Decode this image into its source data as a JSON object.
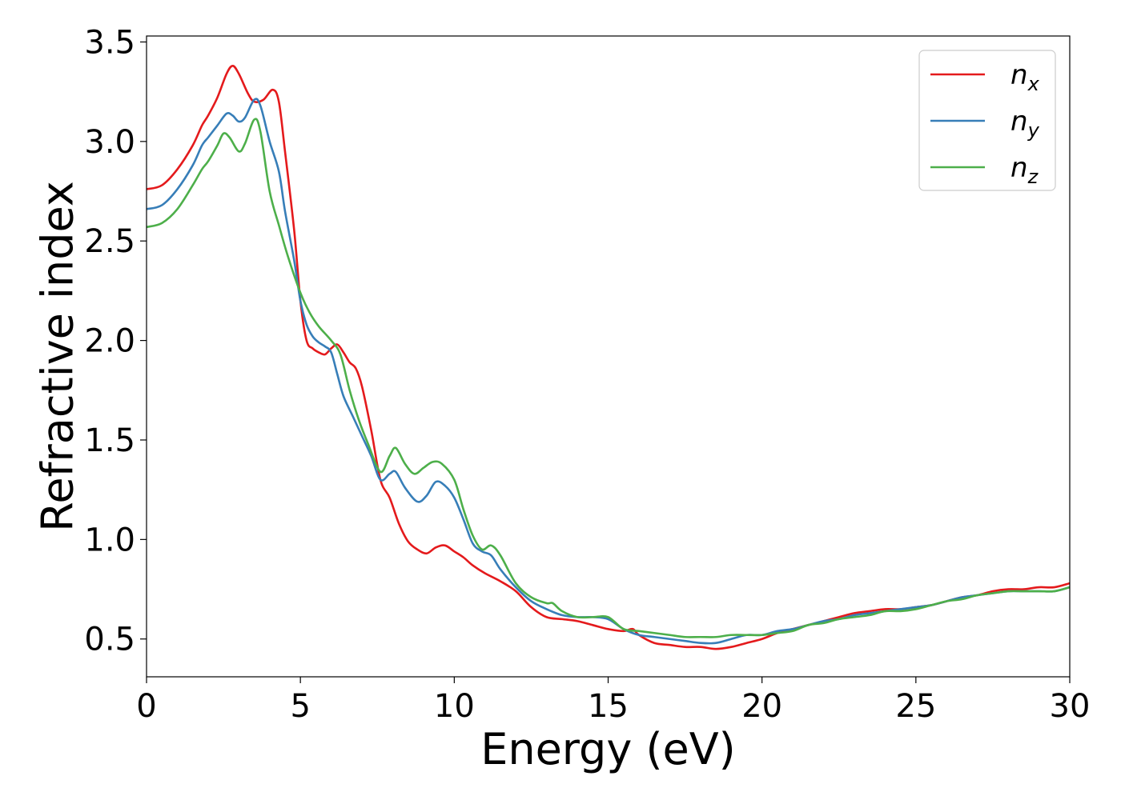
{
  "chart_data": {
    "type": "line",
    "title": "",
    "xlabel": "Energy (eV)",
    "ylabel": "Refractive index",
    "xlim": [
      0,
      30
    ],
    "ylim": [
      0.31,
      3.53
    ],
    "x_ticks": [
      0,
      5,
      10,
      15,
      20,
      25,
      30
    ],
    "x_tick_labels": [
      "0",
      "5",
      "10",
      "15",
      "20",
      "25",
      "30"
    ],
    "y_ticks": [
      0.5,
      1.0,
      1.5,
      2.0,
      2.5,
      3.0,
      3.5
    ],
    "y_tick_labels": [
      "0.5",
      "1.0",
      "1.5",
      "2.0",
      "2.5",
      "3.0",
      "3.5"
    ],
    "grid": false,
    "legend_position": "top-right",
    "series": [
      {
        "name": "n",
        "subscript": "x",
        "color": "#e41a1c",
        "points": [
          [
            0,
            2.76
          ],
          [
            0.5,
            2.78
          ],
          [
            1.0,
            2.86
          ],
          [
            1.5,
            2.98
          ],
          [
            1.8,
            3.08
          ],
          [
            2.0,
            3.13
          ],
          [
            2.3,
            3.22
          ],
          [
            2.6,
            3.34
          ],
          [
            2.8,
            3.38
          ],
          [
            3.0,
            3.34
          ],
          [
            3.3,
            3.24
          ],
          [
            3.5,
            3.2
          ],
          [
            3.8,
            3.21
          ],
          [
            4.1,
            3.26
          ],
          [
            4.3,
            3.2
          ],
          [
            4.5,
            2.95
          ],
          [
            4.8,
            2.55
          ],
          [
            5.0,
            2.2
          ],
          [
            5.2,
            2.0
          ],
          [
            5.4,
            1.96
          ],
          [
            5.6,
            1.94
          ],
          [
            5.8,
            1.93
          ],
          [
            6.0,
            1.96
          ],
          [
            6.2,
            1.98
          ],
          [
            6.4,
            1.94
          ],
          [
            6.6,
            1.89
          ],
          [
            6.8,
            1.86
          ],
          [
            7.0,
            1.77
          ],
          [
            7.3,
            1.55
          ],
          [
            7.6,
            1.3
          ],
          [
            7.9,
            1.21
          ],
          [
            8.2,
            1.08
          ],
          [
            8.5,
            0.99
          ],
          [
            8.8,
            0.95
          ],
          [
            9.1,
            0.93
          ],
          [
            9.4,
            0.96
          ],
          [
            9.7,
            0.97
          ],
          [
            10.0,
            0.94
          ],
          [
            10.3,
            0.91
          ],
          [
            10.6,
            0.87
          ],
          [
            11.0,
            0.83
          ],
          [
            11.5,
            0.79
          ],
          [
            12.0,
            0.74
          ],
          [
            12.5,
            0.66
          ],
          [
            13.0,
            0.61
          ],
          [
            13.5,
            0.6
          ],
          [
            14.0,
            0.59
          ],
          [
            14.5,
            0.57
          ],
          [
            15.0,
            0.55
          ],
          [
            15.5,
            0.54
          ],
          [
            15.8,
            0.55
          ],
          [
            16.0,
            0.52
          ],
          [
            16.5,
            0.48
          ],
          [
            17.0,
            0.47
          ],
          [
            17.5,
            0.46
          ],
          [
            18.0,
            0.46
          ],
          [
            18.5,
            0.45
          ],
          [
            19.0,
            0.46
          ],
          [
            19.5,
            0.48
          ],
          [
            20.0,
            0.5
          ],
          [
            20.5,
            0.53
          ],
          [
            21.0,
            0.55
          ],
          [
            21.5,
            0.57
          ],
          [
            22.0,
            0.59
          ],
          [
            22.5,
            0.61
          ],
          [
            23.0,
            0.63
          ],
          [
            23.5,
            0.64
          ],
          [
            24.0,
            0.65
          ],
          [
            24.5,
            0.65
          ],
          [
            25.0,
            0.66
          ],
          [
            25.5,
            0.67
          ],
          [
            26.0,
            0.69
          ],
          [
            26.5,
            0.71
          ],
          [
            27.0,
            0.72
          ],
          [
            27.5,
            0.74
          ],
          [
            28.0,
            0.75
          ],
          [
            28.5,
            0.75
          ],
          [
            29.0,
            0.76
          ],
          [
            29.5,
            0.76
          ],
          [
            30.0,
            0.78
          ]
        ]
      },
      {
        "name": "n",
        "subscript": "y",
        "color": "#377eb8",
        "points": [
          [
            0,
            2.66
          ],
          [
            0.5,
            2.68
          ],
          [
            1.0,
            2.76
          ],
          [
            1.5,
            2.88
          ],
          [
            1.8,
            2.98
          ],
          [
            2.0,
            3.02
          ],
          [
            2.3,
            3.08
          ],
          [
            2.6,
            3.14
          ],
          [
            2.8,
            3.13
          ],
          [
            3.0,
            3.1
          ],
          [
            3.2,
            3.12
          ],
          [
            3.5,
            3.21
          ],
          [
            3.7,
            3.18
          ],
          [
            4.0,
            3.0
          ],
          [
            4.3,
            2.85
          ],
          [
            4.5,
            2.65
          ],
          [
            4.8,
            2.4
          ],
          [
            5.0,
            2.2
          ],
          [
            5.2,
            2.08
          ],
          [
            5.4,
            2.02
          ],
          [
            5.6,
            1.99
          ],
          [
            5.8,
            1.97
          ],
          [
            6.0,
            1.94
          ],
          [
            6.2,
            1.83
          ],
          [
            6.4,
            1.72
          ],
          [
            6.7,
            1.62
          ],
          [
            7.0,
            1.52
          ],
          [
            7.3,
            1.42
          ],
          [
            7.6,
            1.3
          ],
          [
            7.9,
            1.33
          ],
          [
            8.1,
            1.34
          ],
          [
            8.4,
            1.26
          ],
          [
            8.8,
            1.19
          ],
          [
            9.1,
            1.22
          ],
          [
            9.4,
            1.29
          ],
          [
            9.7,
            1.27
          ],
          [
            10.0,
            1.21
          ],
          [
            10.3,
            1.1
          ],
          [
            10.6,
            0.98
          ],
          [
            10.9,
            0.94
          ],
          [
            11.2,
            0.92
          ],
          [
            11.5,
            0.85
          ],
          [
            12.0,
            0.76
          ],
          [
            12.5,
            0.69
          ],
          [
            13.0,
            0.65
          ],
          [
            13.5,
            0.62
          ],
          [
            14.0,
            0.61
          ],
          [
            14.5,
            0.61
          ],
          [
            15.0,
            0.6
          ],
          [
            15.5,
            0.55
          ],
          [
            16.0,
            0.52
          ],
          [
            16.5,
            0.51
          ],
          [
            17.0,
            0.5
          ],
          [
            17.5,
            0.49
          ],
          [
            18.0,
            0.48
          ],
          [
            18.5,
            0.48
          ],
          [
            19.0,
            0.5
          ],
          [
            19.5,
            0.52
          ],
          [
            20.0,
            0.52
          ],
          [
            20.5,
            0.54
          ],
          [
            21.0,
            0.55
          ],
          [
            21.5,
            0.57
          ],
          [
            22.0,
            0.59
          ],
          [
            22.5,
            0.6
          ],
          [
            23.0,
            0.62
          ],
          [
            23.5,
            0.63
          ],
          [
            24.0,
            0.64
          ],
          [
            24.5,
            0.65
          ],
          [
            25.0,
            0.66
          ],
          [
            25.5,
            0.67
          ],
          [
            26.0,
            0.69
          ],
          [
            26.5,
            0.71
          ],
          [
            27.0,
            0.72
          ],
          [
            27.5,
            0.73
          ],
          [
            28.0,
            0.74
          ],
          [
            28.5,
            0.74
          ],
          [
            29.0,
            0.74
          ],
          [
            29.5,
            0.74
          ],
          [
            30.0,
            0.76
          ]
        ]
      },
      {
        "name": "n",
        "subscript": "z",
        "color": "#4daf4a",
        "points": [
          [
            0,
            2.57
          ],
          [
            0.5,
            2.59
          ],
          [
            1.0,
            2.66
          ],
          [
            1.5,
            2.78
          ],
          [
            1.8,
            2.86
          ],
          [
            2.0,
            2.9
          ],
          [
            2.3,
            2.98
          ],
          [
            2.5,
            3.04
          ],
          [
            2.7,
            3.02
          ],
          [
            3.0,
            2.95
          ],
          [
            3.2,
            2.99
          ],
          [
            3.5,
            3.11
          ],
          [
            3.7,
            3.05
          ],
          [
            4.0,
            2.75
          ],
          [
            4.3,
            2.58
          ],
          [
            4.6,
            2.42
          ],
          [
            5.0,
            2.24
          ],
          [
            5.3,
            2.14
          ],
          [
            5.6,
            2.07
          ],
          [
            6.0,
            2.0
          ],
          [
            6.3,
            1.93
          ],
          [
            6.6,
            1.75
          ],
          [
            6.9,
            1.6
          ],
          [
            7.2,
            1.48
          ],
          [
            7.6,
            1.34
          ],
          [
            7.9,
            1.42
          ],
          [
            8.1,
            1.46
          ],
          [
            8.4,
            1.38
          ],
          [
            8.7,
            1.33
          ],
          [
            9.0,
            1.36
          ],
          [
            9.3,
            1.39
          ],
          [
            9.6,
            1.38
          ],
          [
            10.0,
            1.3
          ],
          [
            10.3,
            1.15
          ],
          [
            10.6,
            1.02
          ],
          [
            10.9,
            0.95
          ],
          [
            11.2,
            0.97
          ],
          [
            11.5,
            0.92
          ],
          [
            12.0,
            0.78
          ],
          [
            12.5,
            0.71
          ],
          [
            13.0,
            0.68
          ],
          [
            13.2,
            0.68
          ],
          [
            13.5,
            0.64
          ],
          [
            14.0,
            0.61
          ],
          [
            14.5,
            0.61
          ],
          [
            15.0,
            0.61
          ],
          [
            15.5,
            0.55
          ],
          [
            16.0,
            0.54
          ],
          [
            16.5,
            0.53
          ],
          [
            17.0,
            0.52
          ],
          [
            17.5,
            0.51
          ],
          [
            18.0,
            0.51
          ],
          [
            18.5,
            0.51
          ],
          [
            19.0,
            0.52
          ],
          [
            19.5,
            0.52
          ],
          [
            20.0,
            0.52
          ],
          [
            20.5,
            0.53
          ],
          [
            21.0,
            0.54
          ],
          [
            21.5,
            0.57
          ],
          [
            22.0,
            0.58
          ],
          [
            22.5,
            0.6
          ],
          [
            23.0,
            0.61
          ],
          [
            23.5,
            0.62
          ],
          [
            24.0,
            0.64
          ],
          [
            24.5,
            0.64
          ],
          [
            25.0,
            0.65
          ],
          [
            25.5,
            0.67
          ],
          [
            26.0,
            0.69
          ],
          [
            26.5,
            0.7
          ],
          [
            27.0,
            0.72
          ],
          [
            27.5,
            0.73
          ],
          [
            28.0,
            0.74
          ],
          [
            28.5,
            0.74
          ],
          [
            29.0,
            0.74
          ],
          [
            29.5,
            0.74
          ],
          [
            30.0,
            0.76
          ]
        ]
      }
    ]
  }
}
